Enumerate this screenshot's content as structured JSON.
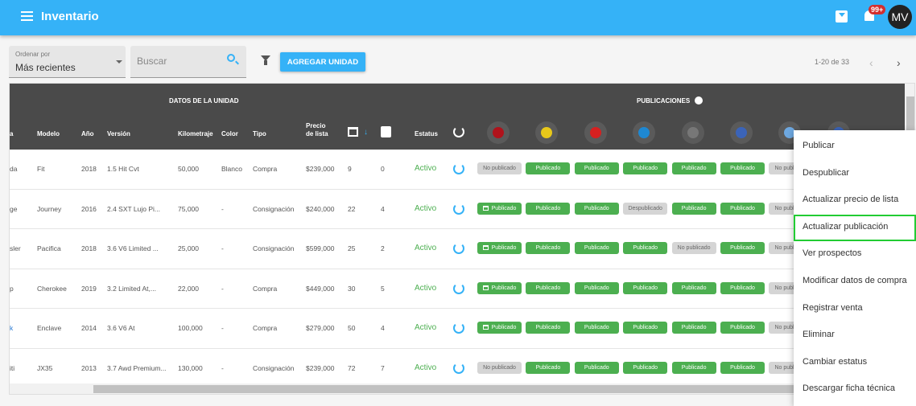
{
  "appbar": {
    "title": "Inventario",
    "notif_count": "99+",
    "avatar": "MV"
  },
  "toolbar": {
    "sort_label": "Ordenar por",
    "sort_value": "Más recientes",
    "search_placeholder": "Buscar",
    "add_label": "AGREGAR UNIDAD",
    "pager": "1-20 de 33"
  },
  "table": {
    "group_unit": "DATOS DE LA UNIDAD",
    "group_pubs": "PUBLICACIONES",
    "headers": {
      "marca": "a",
      "modelo": "Modelo",
      "anio": "Año",
      "version": "Versión",
      "km": "Kilometraje",
      "color": "Color",
      "tipo": "Tipo",
      "precio": "Precio de lista",
      "estatus": "Estatus"
    },
    "platform_icons": [
      {
        "name": "red-flame-logo",
        "color": "#b0121b"
      },
      {
        "name": "yellow-handshake-logo",
        "color": "#e8c81a"
      },
      {
        "name": "red-wheel-logo",
        "color": "#d62020"
      },
      {
        "name": "blue-car-logo",
        "color": "#1e88d2"
      },
      {
        "name": "gray-circle-logo",
        "color": "#777777"
      },
      {
        "name": "facebook-logo",
        "color": "#3b64b8"
      },
      {
        "name": "blue-stripes-logo",
        "color": "#6ea8e0"
      },
      {
        "name": "blue-logo",
        "color": "#3b64b8"
      }
    ],
    "rows": [
      {
        "marca": "da",
        "modelo": "Fit",
        "anio": "2018",
        "version": "1.5 Hit Cvt",
        "km": "50,000",
        "color": "Blanco",
        "tipo": "Compra",
        "precio": "$239,000",
        "dias": "9",
        "prospectos": "0",
        "estatus": "Activo",
        "pubs": [
          [
            "No publicado",
            0,
            0
          ],
          [
            "Publicado",
            1,
            0
          ],
          [
            "Publicado",
            1,
            0
          ],
          [
            "Publicado",
            1,
            0
          ],
          [
            "Publicado",
            1,
            0
          ],
          [
            "Publicado",
            1,
            0
          ],
          [
            "No publicado",
            0,
            0
          ]
        ]
      },
      {
        "marca": "ge",
        "modelo": "Journey",
        "anio": "2016",
        "version": "2.4 SXT Lujo Pi...",
        "km": "75,000",
        "color": "-",
        "tipo": "Consignación",
        "precio": "$240,000",
        "dias": "22",
        "prospectos": "4",
        "estatus": "Activo",
        "pubs": [
          [
            "Publicado",
            1,
            1
          ],
          [
            "Publicado",
            1,
            0
          ],
          [
            "Publicado",
            1,
            0
          ],
          [
            "Despublicado",
            0,
            0
          ],
          [
            "Publicado",
            1,
            0
          ],
          [
            "Publicado",
            1,
            0
          ],
          [
            "No publicado",
            0,
            0
          ]
        ]
      },
      {
        "marca": "sler",
        "modelo": "Pacifica",
        "anio": "2018",
        "version": "3.6 V6 Limited ...",
        "km": "25,000",
        "color": "-",
        "tipo": "Consignación",
        "precio": "$599,000",
        "dias": "25",
        "prospectos": "2",
        "estatus": "Activo",
        "pubs": [
          [
            "Publicado",
            1,
            1
          ],
          [
            "Publicado",
            1,
            0
          ],
          [
            "Publicado",
            1,
            0
          ],
          [
            "Publicado",
            1,
            0
          ],
          [
            "No publicado",
            0,
            0
          ],
          [
            "Publicado",
            1,
            0
          ],
          [
            "No publicado",
            0,
            0
          ]
        ]
      },
      {
        "marca": "p",
        "modelo": "Cherokee",
        "anio": "2019",
        "version": "3.2 Limited At,...",
        "km": "22,000",
        "color": "-",
        "tipo": "Compra",
        "precio": "$449,000",
        "dias": "30",
        "prospectos": "5",
        "estatus": "Activo",
        "pubs": [
          [
            "Publicado",
            1,
            1
          ],
          [
            "Publicado",
            1,
            0
          ],
          [
            "Publicado",
            1,
            0
          ],
          [
            "Publicado",
            1,
            0
          ],
          [
            "Publicado",
            1,
            0
          ],
          [
            "Publicado",
            1,
            0
          ],
          [
            "No publicado",
            0,
            0
          ]
        ]
      },
      {
        "marca": "k",
        "modelo": "Enclave",
        "anio": "2014",
        "version": "3.6 V6 At",
        "km": "100,000",
        "color": "-",
        "tipo": "Compra",
        "precio": "$279,000",
        "dias": "50",
        "prospectos": "4",
        "estatus": "Activo",
        "pubs": [
          [
            "Publicado",
            1,
            1
          ],
          [
            "Publicado",
            1,
            0
          ],
          [
            "Publicado",
            1,
            0
          ],
          [
            "Publicado",
            1,
            0
          ],
          [
            "Publicado",
            1,
            0
          ],
          [
            "Publicado",
            1,
            0
          ],
          [
            "No publicado",
            0,
            0
          ]
        ]
      },
      {
        "marca": "iti",
        "modelo": "JX35",
        "anio": "2013",
        "version": "3.7 Awd Premium...",
        "km": "130,000",
        "color": "-",
        "tipo": "Consignación",
        "precio": "$239,000",
        "dias": "72",
        "prospectos": "7",
        "estatus": "Activo",
        "pubs": [
          [
            "No publicado",
            0,
            0
          ],
          [
            "Publicado",
            1,
            0
          ],
          [
            "Publicado",
            1,
            0
          ],
          [
            "Publicado",
            1,
            0
          ],
          [
            "Publicado",
            1,
            0
          ],
          [
            "Publicado",
            1,
            0
          ],
          [
            "No publicado",
            0,
            0
          ]
        ]
      }
    ]
  },
  "context_menu": {
    "items": [
      "Publicar",
      "Despublicar",
      "Actualizar precio de lista",
      "Actualizar publicación",
      "Ver prospectos",
      "Modificar datos de compra",
      "Registrar venta",
      "Eliminar",
      "Cambiar estatus",
      "Descargar ficha técnica"
    ],
    "highlighted": "Actualizar publicación"
  },
  "colors": {
    "primary": "#35b2f7",
    "published": "#4caf50",
    "unpublished": "#d5d5d5",
    "header": "#4a4a4a"
  }
}
